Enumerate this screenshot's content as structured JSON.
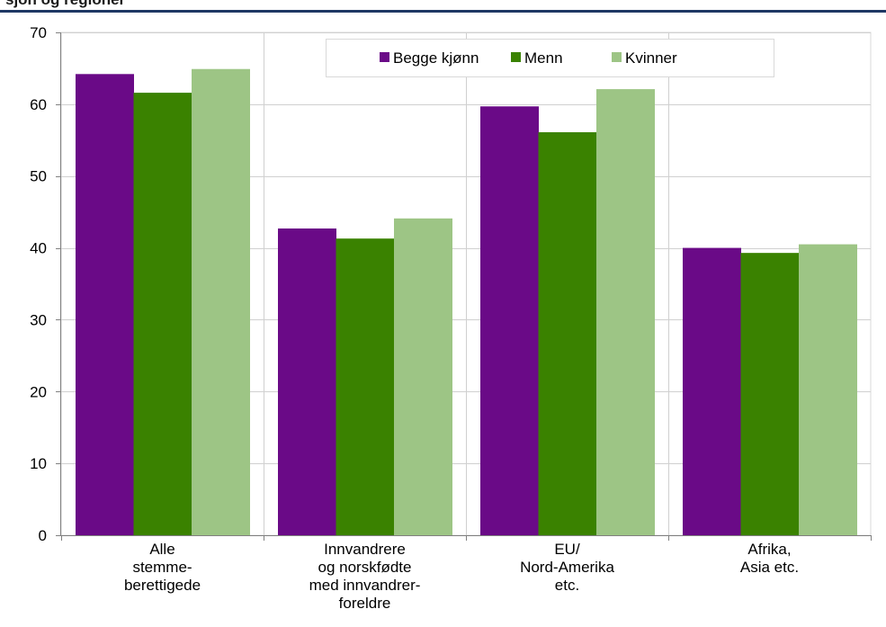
{
  "header": {
    "title_fragment": "sjon og regioner"
  },
  "colors": {
    "header_rule": "#1f3864",
    "grid": "#d0d0d0",
    "axis": "#808080",
    "plot_border": "#d9d9d9"
  },
  "chart_data": {
    "type": "bar",
    "title": "",
    "xlabel": "",
    "ylabel": "",
    "ylim": [
      0,
      70
    ],
    "yticks": [
      0,
      10,
      20,
      30,
      40,
      50,
      60,
      70
    ],
    "grid": true,
    "legend_position": "top-right",
    "categories": [
      [
        "Alle",
        "stemme-",
        "berettigede"
      ],
      [
        "Innvandrere",
        "og norskfødte",
        "med innvandrer-",
        "foreldre"
      ],
      [
        "EU/",
        "Nord-Amerika",
        "etc."
      ],
      [
        "Afrika,",
        "Asia etc."
      ]
    ],
    "series": [
      {
        "name": "Begge kjønn",
        "color": "#6a0a87",
        "values": [
          64.2,
          42.7,
          59.7,
          40.0
        ]
      },
      {
        "name": "Menn",
        "color": "#3a8200",
        "values": [
          61.6,
          41.3,
          56.1,
          39.3
        ]
      },
      {
        "name": "Kvinner",
        "color": "#9dc585",
        "values": [
          64.9,
          44.1,
          62.1,
          40.5
        ]
      }
    ]
  }
}
